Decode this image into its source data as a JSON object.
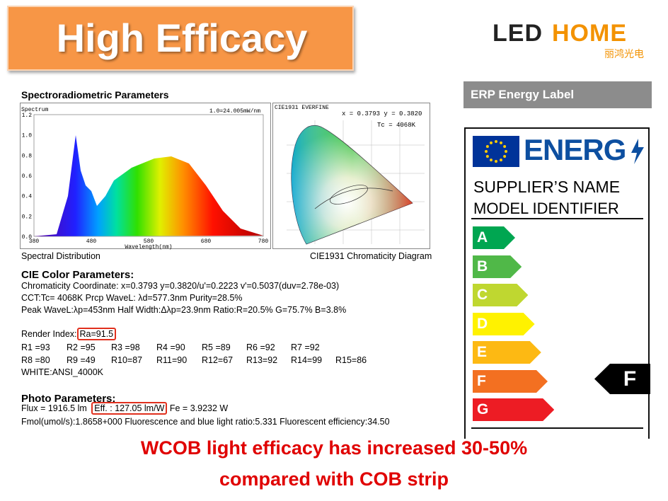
{
  "header": {
    "title": "High Efficacy",
    "logo": {
      "left": "LED",
      "right": "HOME",
      "chinese": "丽鸿光电"
    }
  },
  "spectro": {
    "heading": "Spectroradiometric Parameters",
    "spectrum": {
      "label": "Spectrum",
      "scale": "1.0=24.005mW/nm",
      "yticks": [
        "1.2",
        "1.0",
        "0.8",
        "0.6",
        "0.4",
        "0.2",
        "0.0"
      ],
      "xticks": [
        "380",
        "480",
        "580",
        "680",
        "780"
      ],
      "xlabel": "Wavelength(nm)",
      "caption": "Spectral Distribution"
    },
    "cie": {
      "title": "CIE1931 EVERFINE",
      "coords": "x = 0.3793 y = 0.3820",
      "tc": "Tc = 4068K",
      "caption": "CIE1931 Chromaticity Diagram"
    }
  },
  "color_params": {
    "heading": "CIE Color Parameters:",
    "lines": [
      "Chromaticity Coordinate: x=0.3793 y=0.3820/u'=0.2223 v'=0.5037(duv=2.78e-03)",
      "CCT:Tc=  4068K  Prcp WaveL:  λd=577.3nm Purity=28.5%",
      "Peak WaveL:λp=453nm  Half Width:Δλp=23.9nm Ratio:R=20.5% G=75.7% B=3.8%"
    ],
    "render_label": "Render Index:",
    "ra": "Ra=91.5",
    "r_values": [
      [
        "R1 =93",
        "R2 =95",
        "R3 =98",
        "R4 =90",
        "R5 =89",
        "R6 =92",
        "R7 =92"
      ],
      [
        "R8 =80",
        "R9 =49",
        "R10=87",
        "R11=90",
        "R12=67",
        "R13=92",
        "R14=99",
        "R15=86"
      ]
    ],
    "white": "WHITE:ANSI_4000K"
  },
  "photo": {
    "heading": "Photo Parameters:",
    "flux": "Flux  = 1916.5 lm",
    "eff": "Eff. : 127.05 lm/W",
    "fe": "Fe  = 3.9232 W",
    "line2": "Fmol(umol/s):1.8658+000  Fluorescence and blue light ratio:5.331 Fluorescent efficiency:34.50"
  },
  "energy_label": {
    "header": "ERP Energy Label",
    "energ": "ENERG",
    "supplier": "SUPPLIER’S NAME",
    "model": "MODEL IDENTIFIER",
    "classes": [
      {
        "letter": "A",
        "color": "#00a651"
      },
      {
        "letter": "B",
        "color": "#50b848"
      },
      {
        "letter": "C",
        "color": "#bfd730"
      },
      {
        "letter": "D",
        "color": "#fff200"
      },
      {
        "letter": "E",
        "color": "#fdb913"
      },
      {
        "letter": "F",
        "color": "#f37021"
      },
      {
        "letter": "G",
        "color": "#ed1c24"
      }
    ],
    "rating": "F"
  },
  "footer": {
    "lines": [
      "WCOB light efficacy has increased 30-50%",
      "compared with COB strip"
    ]
  }
}
